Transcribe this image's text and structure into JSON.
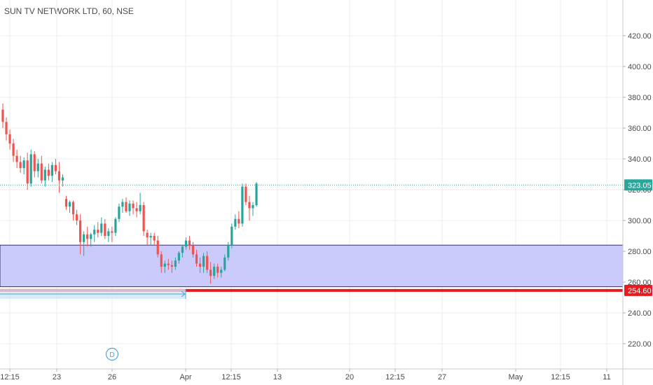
{
  "header": {
    "title": "SUN TV NETWORK LTD, 60, NSE"
  },
  "colors": {
    "up": "#26a69a",
    "down": "#ef5350",
    "zone_fill": "#c5c5fb",
    "zone_border": "#30306a",
    "support": "#e8191f",
    "last": "#2aa79b",
    "range": "#4aa3df"
  },
  "chart_data": {
    "type": "candlestick",
    "symbol": "SUN TV NETWORK LTD",
    "interval": "60",
    "exchange": "NSE",
    "y_ticks": [
      220,
      240,
      260,
      280,
      300,
      320,
      340,
      360,
      380,
      400,
      420
    ],
    "y_tick_labels": [
      "220.00",
      "240.00",
      "260.00",
      "280.00",
      "300.00",
      "320.00",
      "340.00",
      "360.00",
      "380.00",
      "400.00",
      "420.00"
    ],
    "ylim": [
      205,
      433
    ],
    "x_tick_labels": [
      "12:15",
      "23",
      "26",
      "Apr",
      "12:15",
      "13",
      "20",
      "12:15",
      "27",
      "May",
      "12:15",
      "11"
    ],
    "last_price": 323.05,
    "last_price_label": "323.05",
    "support_level": 254.6,
    "support_label": "254.60",
    "zone": {
      "top": 284,
      "bottom": 257
    },
    "date_range_marker": "Apr",
    "dividend_marker": "D",
    "ohlc": [
      [
        372,
        376,
        360,
        364
      ],
      [
        364,
        367,
        352,
        356
      ],
      [
        356,
        359,
        346,
        350
      ],
      [
        350,
        353,
        338,
        342
      ],
      [
        342,
        346,
        334,
        338
      ],
      [
        338,
        342,
        331,
        334
      ],
      [
        334,
        341,
        330,
        339
      ],
      [
        339,
        344,
        320,
        324
      ],
      [
        324,
        346,
        322,
        343
      ],
      [
        343,
        345,
        328,
        332
      ],
      [
        332,
        340,
        328,
        337
      ],
      [
        337,
        342,
        324,
        326
      ],
      [
        326,
        335,
        322,
        333
      ],
      [
        333,
        337,
        326,
        329
      ],
      [
        329,
        338,
        325,
        336
      ],
      [
        336,
        340,
        330,
        332
      ],
      [
        332,
        338,
        318,
        326
      ],
      [
        326,
        330,
        322,
        328
      ],
      [
        314,
        316,
        307,
        309
      ],
      [
        309,
        313,
        305,
        312
      ],
      [
        312,
        313,
        300,
        304
      ],
      [
        304,
        307,
        297,
        300
      ],
      [
        300,
        304,
        278,
        286
      ],
      [
        286,
        293,
        277,
        291
      ],
      [
        291,
        296,
        283,
        288
      ],
      [
        288,
        292,
        283,
        291
      ],
      [
        291,
        297,
        286,
        294
      ],
      [
        294,
        299,
        289,
        292
      ],
      [
        292,
        302,
        290,
        298
      ],
      [
        298,
        301,
        288,
        290
      ],
      [
        290,
        295,
        286,
        293
      ],
      [
        293,
        296,
        286,
        292
      ],
      [
        292,
        302,
        290,
        301
      ],
      [
        301,
        311,
        299,
        309
      ],
      [
        309,
        314,
        305,
        312
      ],
      [
        312,
        315,
        305,
        306
      ],
      [
        306,
        313,
        303,
        311
      ],
      [
        311,
        313,
        304,
        308
      ],
      [
        308,
        312,
        302,
        306
      ],
      [
        306,
        318,
        304,
        310
      ],
      [
        310,
        312,
        290,
        293
      ],
      [
        292,
        294,
        284,
        289
      ],
      [
        289,
        292,
        284,
        290
      ],
      [
        290,
        292,
        284,
        287
      ],
      [
        287,
        290,
        276,
        278
      ],
      [
        278,
        280,
        266,
        270
      ],
      [
        270,
        274,
        266,
        272
      ],
      [
        272,
        275,
        268,
        271
      ],
      [
        271,
        274,
        266,
        270
      ],
      [
        270,
        276,
        268,
        274
      ],
      [
        274,
        280,
        272,
        279
      ],
      [
        279,
        284,
        276,
        283
      ],
      [
        283,
        289,
        281,
        287
      ],
      [
        287,
        290,
        281,
        284
      ],
      [
        284,
        286,
        276,
        278
      ],
      [
        278,
        281,
        270,
        272
      ],
      [
        272,
        276,
        266,
        270
      ],
      [
        270,
        279,
        266,
        277
      ],
      [
        277,
        280,
        266,
        268
      ],
      [
        268,
        273,
        259,
        264
      ],
      [
        264,
        272,
        262,
        270
      ],
      [
        270,
        272,
        263,
        266
      ],
      [
        266,
        270,
        263,
        268
      ],
      [
        268,
        278,
        267,
        276
      ],
      [
        276,
        286,
        274,
        284
      ],
      [
        284,
        298,
        282,
        296
      ],
      [
        296,
        304,
        294,
        301
      ],
      [
        301,
        306,
        295,
        298
      ],
      [
        298,
        324,
        296,
        322
      ],
      [
        322,
        324,
        310,
        312
      ],
      [
        312,
        316,
        300,
        308
      ],
      [
        308,
        312,
        303,
        310
      ],
      [
        310,
        325,
        309,
        324
      ]
    ]
  }
}
